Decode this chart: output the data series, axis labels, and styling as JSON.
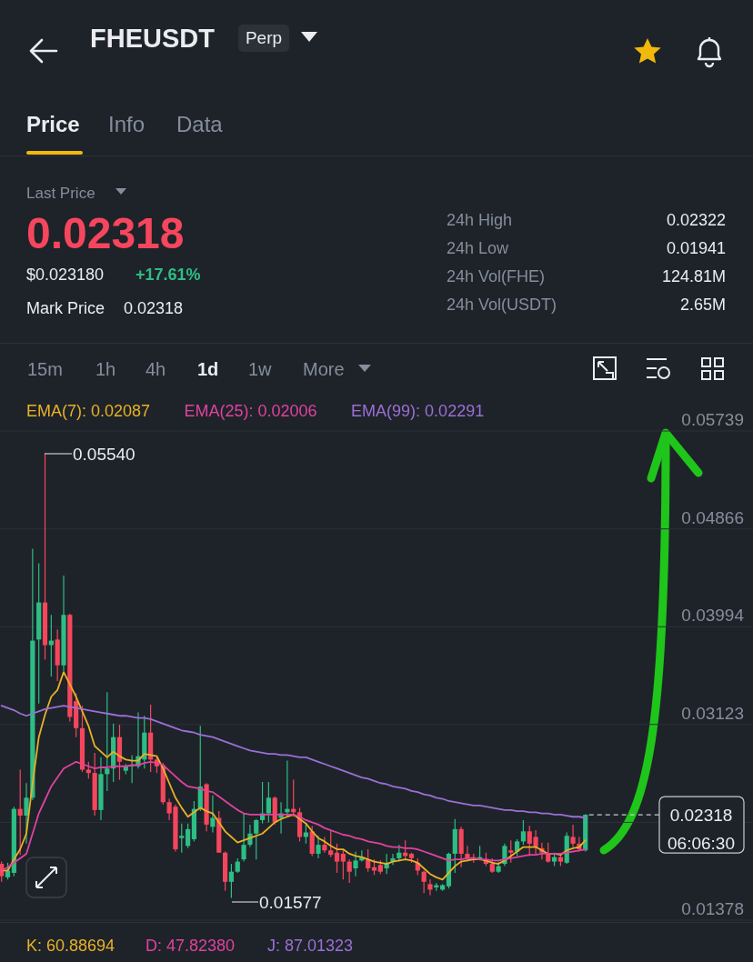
{
  "chart_data": {
    "type": "candlestick",
    "title": "FHEUSDT",
    "annotations": [
      "Perp",
      "Price",
      "Info",
      "Data",
      "Last Price",
      "0.02318",
      "$0.023180",
      "+17.61%",
      "Mark Price",
      "0.02318",
      "24h High",
      "0.02322",
      "24h Low",
      "0.01941",
      "24h Vol(FHE)",
      "124.81M",
      "24h Vol(USDT)",
      "2.65M",
      "15m",
      "1h",
      "4h",
      "1d",
      "1w",
      "More",
      "06:06:30",
      "K: 60.88694",
      "D: 47.82380",
      "J: 87.01323",
      "0.05540",
      "0.01577"
    ],
    "categories": [
      null,
      null,
      null,
      null,
      null,
      null,
      null,
      null,
      null,
      null,
      null,
      null,
      null,
      null,
      null,
      null,
      null,
      null,
      null,
      null,
      null,
      null,
      null,
      null,
      null,
      null,
      null,
      null,
      null,
      null,
      null,
      null,
      null,
      null,
      null,
      null,
      null,
      null,
      null,
      null,
      null,
      null,
      null,
      null,
      null,
      null,
      null,
      null,
      null,
      null,
      null,
      null,
      null,
      null,
      null,
      null,
      null,
      null,
      null,
      null,
      null,
      null,
      null,
      null,
      null,
      null,
      null,
      null,
      null,
      null,
      null,
      null,
      null,
      null,
      null,
      null,
      null,
      null,
      null,
      null,
      null,
      null,
      null,
      null,
      null,
      null,
      null,
      null,
      null,
      null,
      null,
      null,
      null,
      null,
      null
    ],
    "ohlc": [
      [
        0.0188,
        0.019,
        0.0172,
        0.0177
      ],
      [
        0.0176,
        0.0189,
        0.0174,
        0.0182
      ],
      [
        0.018,
        0.0239,
        0.0177,
        0.0237
      ],
      [
        0.0237,
        0.0272,
        0.0196,
        0.0231
      ],
      [
        0.0231,
        0.026,
        0.0206,
        0.0247
      ],
      [
        0.0247,
        0.0469,
        0.0245,
        0.0387
      ],
      [
        0.0388,
        0.0456,
        0.0331,
        0.0421
      ],
      [
        0.0421,
        0.0554,
        0.037,
        0.0383
      ],
      [
        0.0383,
        0.041,
        0.0355,
        0.0387
      ],
      [
        0.0388,
        0.0397,
        0.0351,
        0.0365
      ],
      [
        0.0365,
        0.0445,
        0.036,
        0.041
      ],
      [
        0.041,
        0.0411,
        0.0315,
        0.0319
      ],
      [
        0.0333,
        0.034,
        0.0301,
        0.0309
      ],
      [
        0.0309,
        0.0329,
        0.027,
        0.0272
      ],
      [
        0.0272,
        0.0279,
        0.0264,
        0.0269
      ],
      [
        0.0269,
        0.0287,
        0.0231,
        0.0236
      ],
      [
        0.0236,
        0.0283,
        0.0227,
        0.0268
      ],
      [
        0.0268,
        0.0341,
        0.0253,
        0.0273
      ],
      [
        0.0273,
        0.0313,
        0.0261,
        0.0301
      ],
      [
        0.0301,
        0.0312,
        0.0263,
        0.0279
      ],
      [
        0.0271,
        0.0277,
        0.0268,
        0.0275
      ],
      [
        0.0275,
        0.0285,
        0.026,
        0.0276
      ],
      [
        0.0275,
        0.0323,
        0.0273,
        0.0284
      ],
      [
        0.0281,
        0.032,
        0.0273,
        0.0305
      ],
      [
        0.0305,
        0.033,
        0.027,
        0.0281
      ],
      [
        0.0281,
        0.0283,
        0.0269,
        0.0275
      ],
      [
        0.0276,
        0.0278,
        0.0241,
        0.0243
      ],
      [
        0.0243,
        0.0246,
        0.0227,
        0.0233
      ],
      [
        0.0239,
        0.0241,
        0.0199,
        0.0201
      ],
      [
        0.0211,
        0.0224,
        0.0198,
        0.0213
      ],
      [
        0.0204,
        0.0224,
        0.0202,
        0.0219
      ],
      [
        0.021,
        0.0244,
        0.0208,
        0.0237
      ],
      [
        0.0237,
        0.0311,
        0.0235,
        0.0257
      ],
      [
        0.0259,
        0.026,
        0.0217,
        0.0223
      ],
      [
        0.0221,
        0.0249,
        0.0216,
        0.0229
      ],
      [
        0.0229,
        0.0235,
        0.0198,
        0.0198
      ],
      [
        0.0198,
        0.0199,
        0.0164,
        0.0172
      ],
      [
        0.0172,
        0.0188,
        0.01577,
        0.0181
      ],
      [
        0.0181,
        0.0193,
        0.018,
        0.019
      ],
      [
        0.0192,
        0.0233,
        0.019,
        0.0205
      ],
      [
        0.0205,
        0.0223,
        0.0203,
        0.0215
      ],
      [
        0.0215,
        0.0228,
        0.0192,
        0.0227
      ],
      [
        0.0227,
        0.0261,
        0.0224,
        0.0233
      ],
      [
        0.0233,
        0.0261,
        0.0225,
        0.0247
      ],
      [
        0.0247,
        0.0248,
        0.0223,
        0.0225
      ],
      [
        0.0229,
        0.0243,
        0.0215,
        0.0233
      ],
      [
        0.0234,
        0.028,
        0.023,
        0.0237
      ],
      [
        0.0237,
        0.0263,
        0.023,
        0.0234
      ],
      [
        0.0234,
        0.0238,
        0.0208,
        0.0212
      ],
      [
        0.0212,
        0.0224,
        0.0206,
        0.0216
      ],
      [
        0.0217,
        0.0222,
        0.0195,
        0.0197
      ],
      [
        0.0197,
        0.0213,
        0.0193,
        0.0205
      ],
      [
        0.0205,
        0.0212,
        0.0198,
        0.02
      ],
      [
        0.02,
        0.0218,
        0.0194,
        0.0196
      ],
      [
        0.0198,
        0.0206,
        0.018,
        0.019
      ],
      [
        0.0197,
        0.0201,
        0.0174,
        0.019
      ],
      [
        0.019,
        0.0192,
        0.0171,
        0.0181
      ],
      [
        0.0184,
        0.0199,
        0.0177,
        0.0191
      ],
      [
        0.0191,
        0.02,
        0.019,
        0.0194
      ],
      [
        0.0192,
        0.0201,
        0.0181,
        0.0184
      ],
      [
        0.0185,
        0.0192,
        0.0178,
        0.0182
      ],
      [
        0.0187,
        0.0191,
        0.0179,
        0.0181
      ],
      [
        0.0184,
        0.0197,
        0.0179,
        0.0189
      ],
      [
        0.019,
        0.0197,
        0.0187,
        0.0193
      ],
      [
        0.0193,
        0.0205,
        0.019,
        0.0198
      ],
      [
        0.0198,
        0.0209,
        0.0192,
        0.0195
      ],
      [
        0.0197,
        0.0198,
        0.0189,
        0.0193
      ],
      [
        0.0189,
        0.0193,
        0.0178,
        0.0182
      ],
      [
        0.0181,
        0.0182,
        0.0162,
        0.0172
      ],
      [
        0.017,
        0.0174,
        0.016,
        0.0165
      ],
      [
        0.0167,
        0.0171,
        0.0164,
        0.0169
      ],
      [
        0.0165,
        0.017,
        0.0164,
        0.0169
      ],
      [
        0.0168,
        0.0198,
        0.0166,
        0.0197
      ],
      [
        0.0197,
        0.0228,
        0.018,
        0.0219
      ],
      [
        0.0219,
        0.0221,
        0.0185,
        0.0197
      ],
      [
        0.0197,
        0.0204,
        0.019,
        0.0193
      ],
      [
        0.0194,
        0.0197,
        0.0189,
        0.0193
      ],
      [
        0.0192,
        0.0204,
        0.0191,
        0.0194
      ],
      [
        0.0192,
        0.0198,
        0.0186,
        0.0188
      ],
      [
        0.0188,
        0.0193,
        0.018,
        0.0181
      ],
      [
        0.0181,
        0.019,
        0.018,
        0.0186
      ],
      [
        0.0188,
        0.0206,
        0.0186,
        0.0204
      ],
      [
        0.02,
        0.0209,
        0.0189,
        0.0198
      ],
      [
        0.0199,
        0.021,
        0.0195,
        0.0208
      ],
      [
        0.0208,
        0.0227,
        0.0205,
        0.0217
      ],
      [
        0.0217,
        0.0222,
        0.0195,
        0.0206
      ],
      [
        0.0212,
        0.0218,
        0.0197,
        0.0203
      ],
      [
        0.0202,
        0.0207,
        0.0192,
        0.0198
      ],
      [
        0.0197,
        0.0207,
        0.0189,
        0.019
      ],
      [
        0.019,
        0.0198,
        0.0186,
        0.0194
      ],
      [
        0.0194,
        0.0197,
        0.0186,
        0.019
      ],
      [
        0.0189,
        0.0216,
        0.0188,
        0.0213
      ],
      [
        0.0212,
        0.0223,
        0.0203,
        0.0206
      ],
      [
        0.0206,
        0.0212,
        0.0199,
        0.0201
      ],
      [
        0.02,
        0.02322,
        0.0199,
        0.02318
      ]
    ],
    "colors": [
      "#f6465d",
      "#2ebd85",
      "#2ebd85",
      "#f6465d",
      "#2ebd85",
      "#2ebd85",
      "#2ebd85",
      "#f6465d",
      "#2ebd85",
      "#f6465d",
      "#2ebd85",
      "#f6465d",
      "#f6465d",
      "#f6465d",
      "#f6465d",
      "#f6465d",
      "#2ebd85",
      "#2ebd85",
      "#2ebd85",
      "#f6465d",
      "#2ebd85",
      "#2ebd85",
      "#2ebd85",
      "#2ebd85",
      "#f6465d",
      "#f6465d",
      "#f6465d",
      "#f6465d",
      "#f6465d",
      "#2ebd85",
      "#2ebd85",
      "#2ebd85",
      "#2ebd85",
      "#f6465d",
      "#2ebd85",
      "#f6465d",
      "#f6465d",
      "#2ebd85",
      "#2ebd85",
      "#2ebd85",
      "#2ebd85",
      "#2ebd85",
      "#2ebd85",
      "#2ebd85",
      "#f6465d",
      "#2ebd85",
      "#2ebd85",
      "#f6465d",
      "#f6465d",
      "#2ebd85",
      "#f6465d",
      "#2ebd85",
      "#f6465d",
      "#f6465d",
      "#f6465d",
      "#f6465d",
      "#f6465d",
      "#2ebd85",
      "#2ebd85",
      "#f6465d",
      "#f6465d",
      "#f6465d",
      "#2ebd85",
      "#2ebd85",
      "#2ebd85",
      "#f6465d",
      "#f6465d",
      "#f6465d",
      "#f6465d",
      "#f6465d",
      "#2ebd85",
      "#2ebd85",
      "#2ebd85",
      "#2ebd85",
      "#f6465d",
      "#f6465d",
      "#f6465d",
      "#2ebd85",
      "#f6465d",
      "#f6465d",
      "#2ebd85",
      "#2ebd85",
      "#f6465d",
      "#2ebd85",
      "#2ebd85",
      "#f6465d",
      "#f6465d",
      "#f6465d",
      "#f6465d",
      "#2ebd85",
      "#f6465d",
      "#2ebd85",
      "#f6465d",
      "#f6465d",
      "#2ebd85"
    ],
    "series": [
      {
        "type": "line",
        "name": "EMA(7): 0.02087",
        "color": "#e9b127",
        "values": [
          0.0182,
          0.0182,
          0.0192,
          0.0201,
          0.0215,
          0.026,
          0.0301,
          0.0321,
          0.0337,
          0.0343,
          0.0359,
          0.0348,
          0.0337,
          0.0324,
          0.0311,
          0.0293,
          0.0288,
          0.0283,
          0.0288,
          0.0284,
          0.0281,
          0.028,
          0.028,
          0.0286,
          0.0285,
          0.0284,
          0.0273,
          0.026,
          0.0247,
          0.0238,
          0.023,
          0.0234,
          0.0238,
          0.0235,
          0.0233,
          0.0225,
          0.0217,
          0.0212,
          0.0207,
          0.0209,
          0.0211,
          0.0213,
          0.0215,
          0.022,
          0.0225,
          0.0228,
          0.023,
          0.0232,
          0.0228,
          0.0224,
          0.0217,
          0.0211,
          0.0208,
          0.0204,
          0.0201,
          0.0201,
          0.0197,
          0.0195,
          0.0194,
          0.0192,
          0.019,
          0.0189,
          0.0188,
          0.019,
          0.0191,
          0.0192,
          0.0191,
          0.0189,
          0.0184,
          0.0179,
          0.0176,
          0.0174,
          0.018,
          0.0186,
          0.019,
          0.0191,
          0.0192,
          0.0192,
          0.0191,
          0.0189,
          0.0188,
          0.0191,
          0.0195,
          0.0199,
          0.0203,
          0.0203,
          0.0203,
          0.02,
          0.0197,
          0.0197,
          0.0196,
          0.02,
          0.0202,
          0.0203,
          0.0209
        ]
      },
      {
        "type": "line",
        "name": "EMA(25): 0.02006",
        "color": "#e0429f",
        "values": [
          0.0182,
          0.0185,
          0.0189,
          0.0193,
          0.0197,
          0.0215,
          0.0233,
          0.0245,
          0.0257,
          0.0265,
          0.0273,
          0.0276,
          0.0279,
          0.0277,
          0.0275,
          0.0273,
          0.0274,
          0.0274,
          0.0275,
          0.0275,
          0.0275,
          0.0276,
          0.0276,
          0.0278,
          0.0279,
          0.0278,
          0.0276,
          0.0271,
          0.0266,
          0.0261,
          0.0257,
          0.0256,
          0.0255,
          0.0253,
          0.0252,
          0.0248,
          0.0244,
          0.024,
          0.0236,
          0.0233,
          0.0232,
          0.0232,
          0.0232,
          0.0232,
          0.0232,
          0.0232,
          0.0232,
          0.0232,
          0.023,
          0.0227,
          0.0225,
          0.0223,
          0.022,
          0.0218,
          0.0216,
          0.0214,
          0.0213,
          0.0211,
          0.021,
          0.0208,
          0.0207,
          0.0206,
          0.0204,
          0.0203,
          0.0203,
          0.0202,
          0.0202,
          0.0201,
          0.0199,
          0.0197,
          0.0195,
          0.0193,
          0.0191,
          0.0192,
          0.0192,
          0.0193,
          0.0193,
          0.0192,
          0.0192,
          0.0191,
          0.0191,
          0.0192,
          0.0193,
          0.0194,
          0.0195,
          0.0196,
          0.0196,
          0.0197,
          0.0197,
          0.0197,
          0.0197,
          0.0198,
          0.0199,
          0.02,
          0.0201
        ]
      },
      {
        "type": "line",
        "name": "EMA(99): 0.02291",
        "color": "#9b6fd6",
        "values": [
          0.0329,
          0.0327,
          0.0325,
          0.0322,
          0.032,
          0.0322,
          0.0324,
          0.0326,
          0.0327,
          0.0328,
          0.0329,
          0.0328,
          0.0327,
          0.0326,
          0.0325,
          0.0324,
          0.0323,
          0.0322,
          0.0321,
          0.032,
          0.032,
          0.0319,
          0.0318,
          0.0318,
          0.0317,
          0.0315,
          0.0313,
          0.0311,
          0.0309,
          0.0307,
          0.0306,
          0.0305,
          0.0303,
          0.0302,
          0.0301,
          0.0299,
          0.0297,
          0.0295,
          0.0293,
          0.0291,
          0.0289,
          0.0288,
          0.0287,
          0.0286,
          0.0286,
          0.0285,
          0.0285,
          0.0284,
          0.0283,
          0.0283,
          0.0281,
          0.0279,
          0.0277,
          0.0275,
          0.0273,
          0.0271,
          0.0269,
          0.0267,
          0.0265,
          0.0264,
          0.0262,
          0.026,
          0.0259,
          0.0257,
          0.0256,
          0.0255,
          0.0253,
          0.0252,
          0.025,
          0.0249,
          0.0247,
          0.0246,
          0.0244,
          0.0243,
          0.0242,
          0.0241,
          0.024,
          0.024,
          0.0239,
          0.0238,
          0.0237,
          0.0236,
          0.0236,
          0.0235,
          0.0235,
          0.0234,
          0.0234,
          0.0233,
          0.0233,
          0.0232,
          0.0232,
          0.0231,
          0.023,
          0.023,
          0.0229
        ]
      }
    ],
    "ylim": [
      0.01378,
      0.05739
    ],
    "yticks": [
      0.01378,
      {
        "value": 0.0225,
        "label": null
      },
      0.03123,
      0.03994,
      0.04866,
      0.05739
    ],
    "grid": "y",
    "legend": "top",
    "tick_labels": "y",
    "ref_lines": [
      {
        "axis": "y",
        "value": 0.02318,
        "label": "0.02318",
        "line_style": "dashed"
      }
    ]
  }
}
